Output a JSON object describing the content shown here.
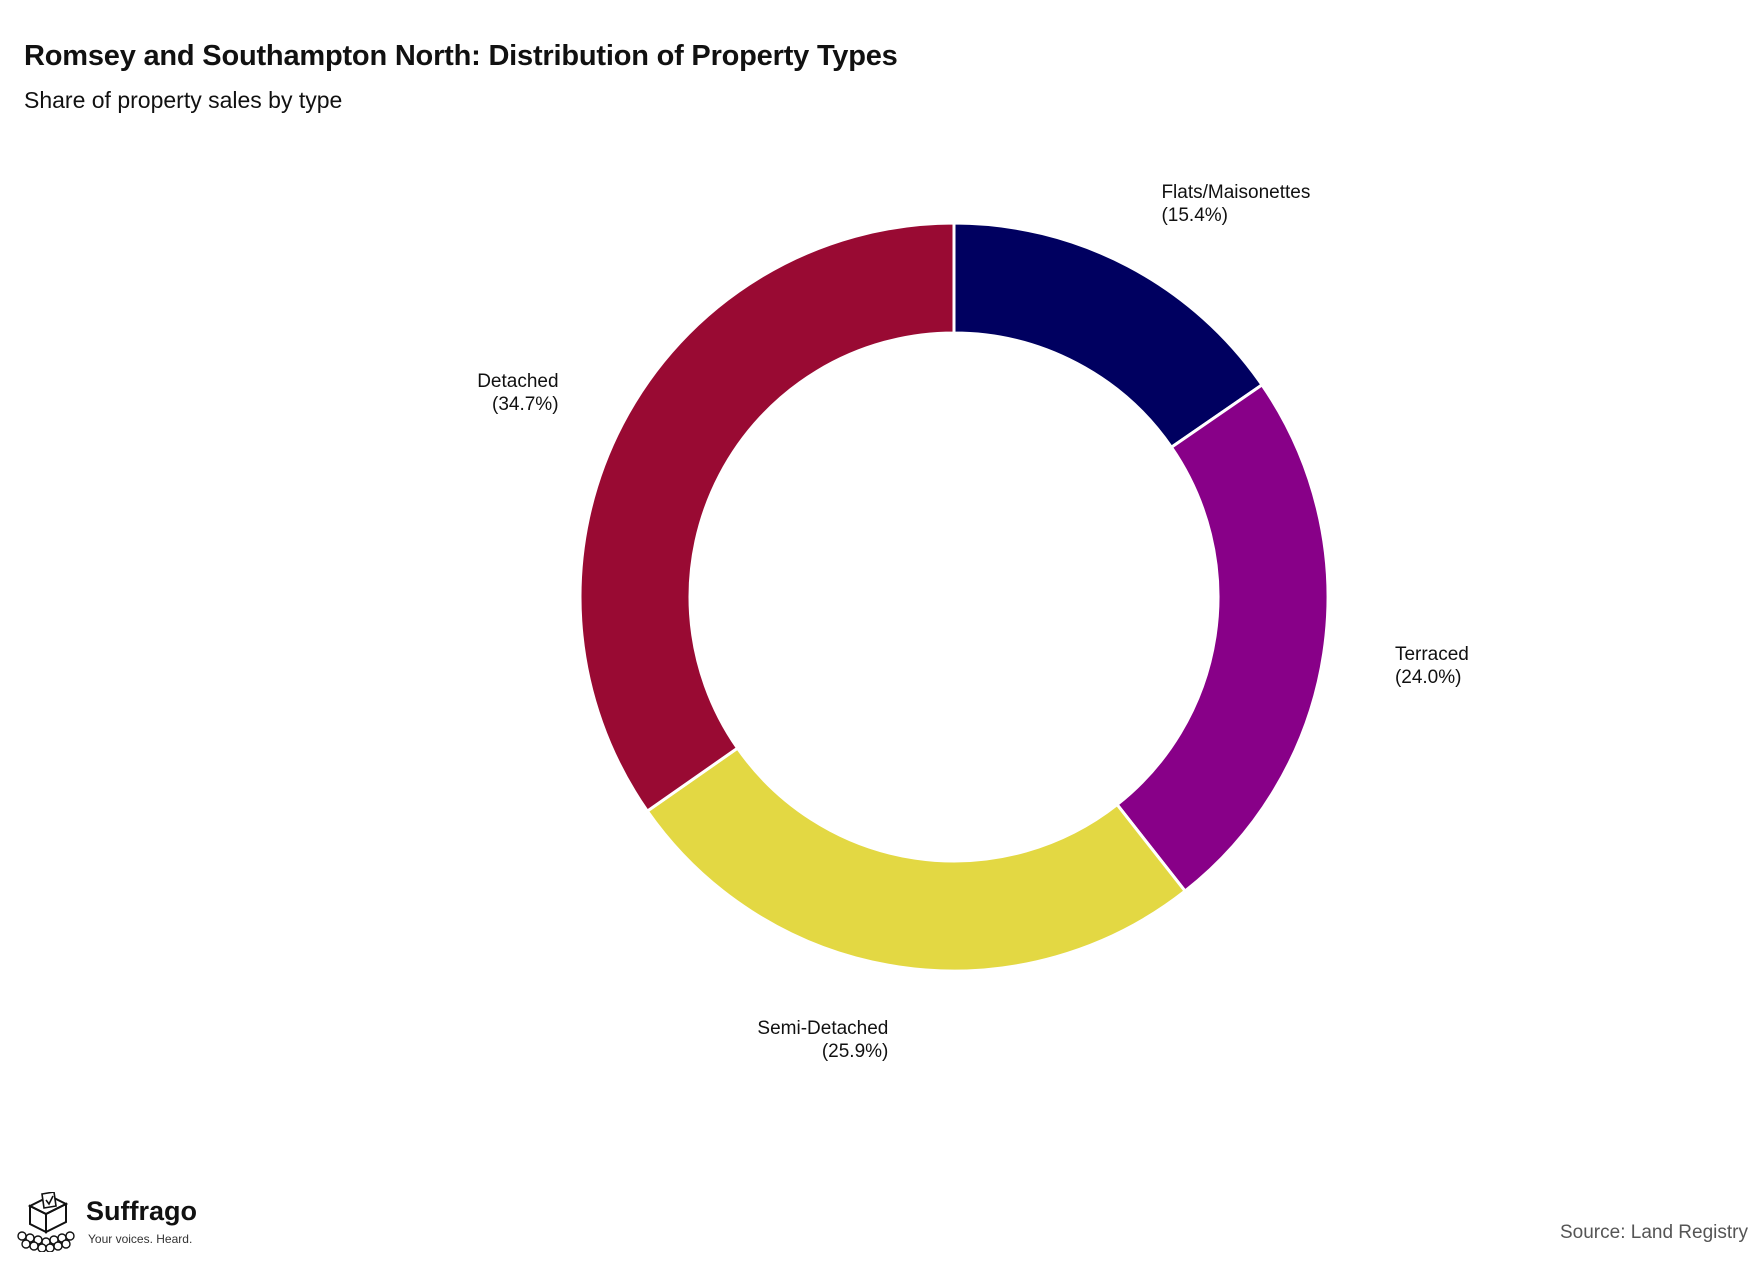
{
  "header": {
    "title": "Romsey and Southampton North: Distribution of Property Types",
    "subtitle": "Share of property sales by type"
  },
  "footer": {
    "brand_name": "Suffrago",
    "brand_tagline": "Your voices. Heard.",
    "source": "Source: Land Registry",
    "logo_icon": "ballot-box-icon"
  },
  "chart_data": {
    "type": "pie",
    "donut": true,
    "start": "top",
    "direction": "clockwise",
    "slices": [
      {
        "name": "Flats/Maisonettes",
        "value": 15.4,
        "label": "(15.4%)",
        "color": "#000060"
      },
      {
        "name": "Terraced",
        "value": 24.0,
        "label": "(24.0%)",
        "color": "#880088"
      },
      {
        "name": "Semi-Detached",
        "value": 25.9,
        "label": "(25.9%)",
        "color": "#E3D843"
      },
      {
        "name": "Detached",
        "value": 34.7,
        "label": "(34.7%)",
        "color": "#990A33"
      }
    ]
  }
}
